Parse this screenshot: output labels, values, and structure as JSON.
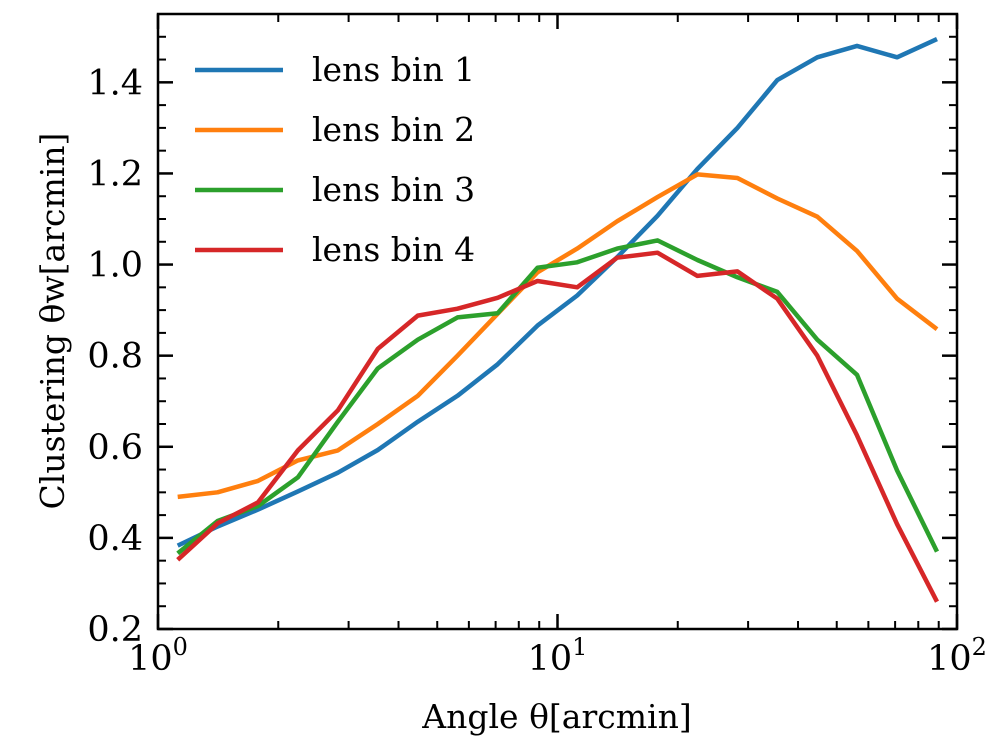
{
  "chart_data": {
    "type": "line",
    "title": "",
    "xlabel": "Angle θ[arcmin]",
    "ylabel": "Clustering θw[arcmin]",
    "xscale": "log",
    "xlim": [
      1,
      100
    ],
    "ylim": [
      0.2,
      1.55
    ],
    "xticks": [
      {
        "value": 1,
        "base": "10",
        "exp": "0"
      },
      {
        "value": 10,
        "base": "10",
        "exp": "1"
      },
      {
        "value": 100,
        "base": "10",
        "exp": "2"
      }
    ],
    "yticks": [
      "0.2",
      "0.4",
      "0.6",
      "0.8",
      "1.0",
      "1.2",
      "1.4"
    ],
    "legend_position": "upper-left",
    "grid": false,
    "x": [
      1.12,
      1.41,
      1.78,
      2.24,
      2.82,
      3.55,
      4.47,
      5.62,
      7.08,
      8.91,
      11.2,
      14.1,
      17.8,
      22.4,
      28.2,
      35.5,
      44.7,
      56.2,
      70.8,
      89.1
    ],
    "series": [
      {
        "name": "lens bin 1",
        "color": "#1f77b4",
        "values": [
          0.383,
          0.425,
          0.462,
          0.502,
          0.543,
          0.593,
          0.655,
          0.712,
          0.781,
          0.866,
          0.932,
          1.016,
          1.107,
          1.21,
          1.3,
          1.405,
          1.455,
          1.48,
          1.455,
          1.495
        ]
      },
      {
        "name": "lens bin 2",
        "color": "#ff7f0e",
        "values": [
          0.49,
          0.5,
          0.525,
          0.57,
          0.592,
          0.65,
          0.712,
          0.8,
          0.892,
          0.983,
          1.035,
          1.095,
          1.148,
          1.198,
          1.19,
          1.145,
          1.105,
          1.03,
          0.925,
          0.858
        ]
      },
      {
        "name": "lens bin 3",
        "color": "#2ca02c",
        "values": [
          0.366,
          0.437,
          0.47,
          0.533,
          0.655,
          0.772,
          0.835,
          0.884,
          0.893,
          0.993,
          1.005,
          1.035,
          1.053,
          1.01,
          0.972,
          0.94,
          0.835,
          0.758,
          0.548,
          0.37
        ]
      },
      {
        "name": "lens bin 4",
        "color": "#d62728",
        "values": [
          0.352,
          0.432,
          0.478,
          0.592,
          0.68,
          0.815,
          0.888,
          0.903,
          0.927,
          0.964,
          0.95,
          1.015,
          1.026,
          0.975,
          0.985,
          0.925,
          0.8,
          0.625,
          0.43,
          0.26
        ]
      }
    ]
  }
}
